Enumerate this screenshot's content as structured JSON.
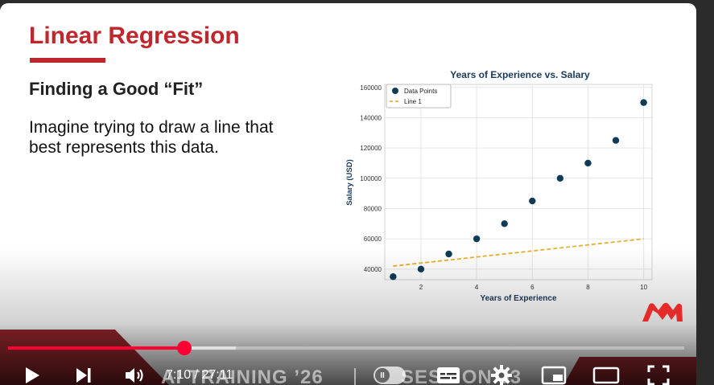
{
  "slide": {
    "title": "Linear Regression",
    "subtitle": "Finding a Good “Fit”",
    "body_line1": "Imagine trying to draw a line that",
    "body_line2": "best represents this data."
  },
  "chart_data": {
    "type": "scatter",
    "title": "Years of Experience vs. Salary",
    "xlabel": "Years of Experience",
    "ylabel": "Salary (USD)",
    "xlim": [
      0.7,
      10.3
    ],
    "ylim": [
      33000,
      162000
    ],
    "xticks": [
      2,
      4,
      6,
      8,
      10
    ],
    "yticks": [
      40000,
      60000,
      80000,
      100000,
      120000,
      140000,
      160000
    ],
    "grid": true,
    "legend_position": "top-left",
    "series": [
      {
        "name": "Data Points",
        "type": "scatter",
        "color": "#0f3b57",
        "x": [
          1,
          2,
          3,
          4,
          5,
          6,
          7,
          8,
          9,
          10
        ],
        "y": [
          35000,
          40000,
          50000,
          60000,
          70000,
          85000,
          100000,
          110000,
          125000,
          150000
        ]
      },
      {
        "name": "Line 1",
        "type": "line",
        "style": "dashed",
        "color": "#e8b030",
        "x": [
          1,
          10
        ],
        "y": [
          42000,
          60000
        ]
      }
    ]
  },
  "video": {
    "current_time": "7:10",
    "duration": "27:11",
    "time_separator": " / ",
    "played_fraction": 0.261,
    "buffered_fraction": 0.337,
    "accent_color": "#ff0033"
  },
  "watermark": {
    "left_text": "AI TRAINING ’26",
    "right_text": "SESSION 03"
  },
  "controls": {
    "icons": [
      "play-icon",
      "next-icon",
      "volume-icon",
      "autoplay-toggle",
      "subtitles-icon",
      "settings-icon",
      "miniplayer-icon",
      "theater-icon",
      "fullscreen-icon"
    ],
    "toggle_label": "II"
  }
}
